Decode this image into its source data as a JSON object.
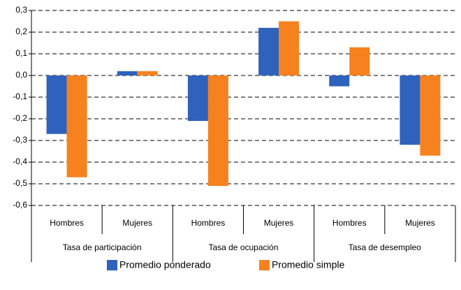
{
  "chart_data": {
    "type": "bar",
    "categories": [
      "Hombres",
      "Mujeres",
      "Hombres",
      "Mujeres",
      "Hombres",
      "Mujeres"
    ],
    "category_groups": [
      "Tasa de participación",
      "Tasa de ocupación",
      "Tasa de desempleo"
    ],
    "series": [
      {
        "name": "Promedio ponderado",
        "color": "#2f62bd",
        "values": [
          -0.27,
          0.02,
          -0.21,
          0.22,
          -0.05,
          -0.32
        ]
      },
      {
        "name": "Promedio simple",
        "color": "#f5821f",
        "values": [
          -0.47,
          0.02,
          -0.51,
          0.25,
          0.13,
          -0.37
        ]
      }
    ],
    "ylim": [
      -0.6,
      0.3
    ],
    "yticks": [
      {
        "value": -0.6,
        "label": "-0,6"
      },
      {
        "value": -0.5,
        "label": "-0,5"
      },
      {
        "value": -0.4,
        "label": "-0,4"
      },
      {
        "value": -0.3,
        "label": "-0,3"
      },
      {
        "value": -0.2,
        "label": "-0,2"
      },
      {
        "value": -0.1,
        "label": "-0,1"
      },
      {
        "value": 0,
        "label": "0,0"
      },
      {
        "value": 0.1,
        "label": "0,1"
      },
      {
        "value": 0.2,
        "label": "0,2"
      },
      {
        "value": 0.3,
        "label": "0,3"
      }
    ],
    "grid": true,
    "legend": "bottom"
  }
}
